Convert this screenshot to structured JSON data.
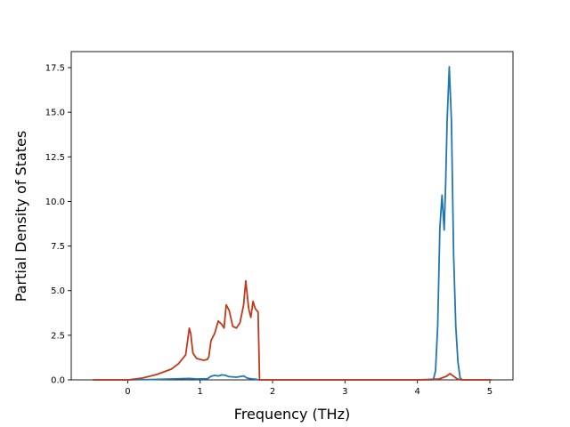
{
  "chart_data": {
    "type": "line",
    "xlabel": "Frequency (THz)",
    "ylabel": "Partial Density of States",
    "xlim": [
      -0.78,
      5.32
    ],
    "ylim": [
      0,
      18.4
    ],
    "x_ticks": [
      0,
      1,
      2,
      3,
      4,
      5
    ],
    "x_tick_labels": [
      "0",
      "1",
      "2",
      "3",
      "4",
      "5"
    ],
    "y_ticks": [
      0,
      2.5,
      5,
      7.5,
      10,
      12.5,
      15,
      17.5
    ],
    "y_tick_labels": [
      "0.0",
      "2.5",
      "5.0",
      "7.5",
      "10.0",
      "12.5",
      "15.0",
      "17.5"
    ],
    "grid": false,
    "legend": null,
    "series": [
      {
        "color": "#1f77b4",
        "x": [
          -0.48,
          0.0,
          0.3,
          0.6,
          0.85,
          0.95,
          1.1,
          1.15,
          1.2,
          1.25,
          1.3,
          1.35,
          1.4,
          1.5,
          1.55,
          1.6,
          1.65,
          1.7,
          1.78,
          1.8,
          2.0,
          3.0,
          4.0,
          4.22,
          4.25,
          4.28,
          4.31,
          4.34,
          4.37,
          4.39,
          4.41,
          4.44,
          4.47,
          4.5,
          4.53,
          4.56,
          4.59,
          4.62,
          5.02
        ],
        "y": [
          0,
          0,
          0.02,
          0.05,
          0.08,
          0.05,
          0.06,
          0.2,
          0.25,
          0.22,
          0.28,
          0.25,
          0.18,
          0.15,
          0.18,
          0.22,
          0.1,
          0.06,
          0.03,
          0,
          0,
          0,
          0,
          0,
          0.5,
          3.0,
          8.5,
          10.35,
          8.4,
          11.0,
          14.5,
          17.55,
          14.5,
          7.0,
          3.0,
          1.0,
          0.1,
          0,
          0
        ]
      },
      {
        "color": "#c0391b",
        "x": [
          -0.48,
          0.0,
          0.2,
          0.4,
          0.6,
          0.7,
          0.8,
          0.85,
          0.87,
          0.9,
          0.95,
          1.0,
          1.05,
          1.1,
          1.12,
          1.15,
          1.2,
          1.25,
          1.3,
          1.33,
          1.36,
          1.4,
          1.45,
          1.5,
          1.55,
          1.6,
          1.63,
          1.67,
          1.7,
          1.73,
          1.76,
          1.8,
          1.82,
          2.0,
          3.0,
          4.0,
          4.3,
          4.4,
          4.45,
          4.5,
          4.55,
          4.6,
          5.02
        ],
        "y": [
          0,
          0,
          0.1,
          0.3,
          0.6,
          0.9,
          1.4,
          2.9,
          2.6,
          1.5,
          1.2,
          1.15,
          1.1,
          1.15,
          1.3,
          2.2,
          2.6,
          3.3,
          3.1,
          2.9,
          4.2,
          3.9,
          3.0,
          2.9,
          3.2,
          4.2,
          5.55,
          4.0,
          3.5,
          4.4,
          4.0,
          3.8,
          0,
          0,
          0,
          0,
          0.05,
          0.2,
          0.35,
          0.2,
          0.05,
          0,
          0
        ]
      }
    ]
  }
}
